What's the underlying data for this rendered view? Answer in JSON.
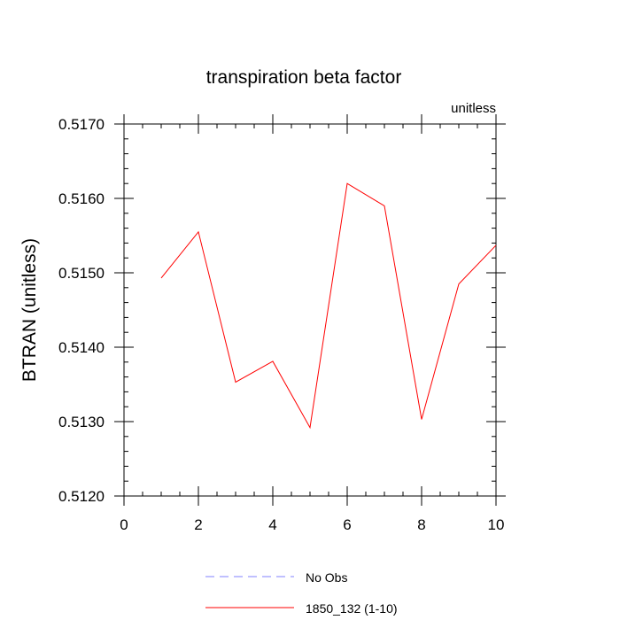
{
  "chart_data": {
    "type": "line",
    "title": "transpiration beta factor",
    "units_label": "unitless",
    "xlabel": "",
    "ylabel": "BTRAN  (unitless)",
    "xlim": [
      0,
      10
    ],
    "ylim": [
      0.512,
      0.517
    ],
    "x_ticks": [
      0,
      2,
      4,
      6,
      8,
      10
    ],
    "x_tick_labels": [
      "0",
      "2",
      "4",
      "6",
      "8",
      "10"
    ],
    "y_ticks": [
      0.512,
      0.513,
      0.514,
      0.515,
      0.516,
      0.517
    ],
    "y_tick_labels": [
      "0.5120",
      "0.5130",
      "0.5140",
      "0.5150",
      "0.5160",
      "0.5170"
    ],
    "grid": false,
    "legend_position": "bottom-center",
    "series": [
      {
        "name": "No Obs",
        "color": "#8080ff",
        "style": "dashed",
        "x": [],
        "y": []
      },
      {
        "name": "1850_132 (1-10)",
        "color": "#ff0000",
        "style": "solid",
        "x": [
          1,
          2,
          3,
          4,
          5,
          6,
          7,
          8,
          9,
          10
        ],
        "y": [
          0.51493,
          0.51555,
          0.51353,
          0.51381,
          0.51292,
          0.5162,
          0.5159,
          0.51303,
          0.51485,
          0.51537
        ]
      }
    ]
  }
}
